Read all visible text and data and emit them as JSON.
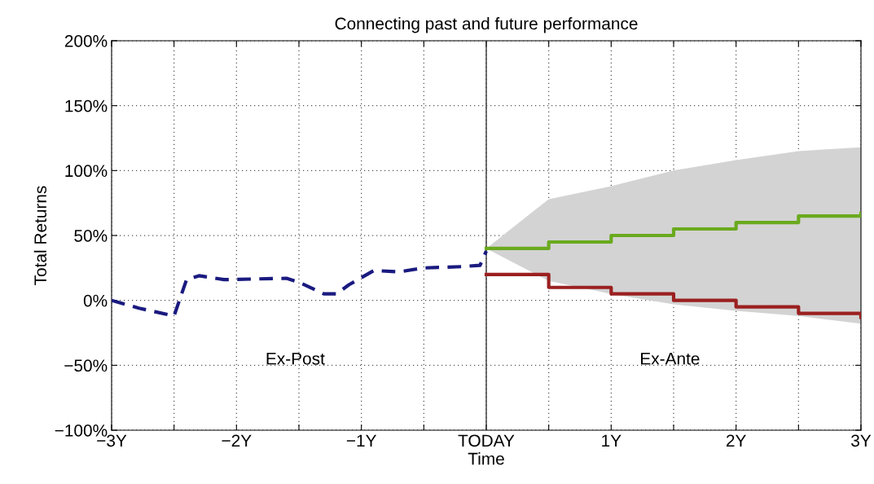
{
  "chart_data": {
    "type": "line",
    "title": "Connecting past and future performance",
    "xlabel": "Time",
    "ylabel": "Total Returns",
    "xlim": [
      -3,
      3
    ],
    "ylim": [
      -100,
      200
    ],
    "xticks": [
      {
        "value": -3,
        "label": "−3Y"
      },
      {
        "value": -2.5,
        "label": null
      },
      {
        "value": -2,
        "label": "−2Y"
      },
      {
        "value": -1.5,
        "label": null
      },
      {
        "value": -1,
        "label": "−1Y"
      },
      {
        "value": -0.5,
        "label": null
      },
      {
        "value": 0,
        "label": "TODAY"
      },
      {
        "value": 0.5,
        "label": null
      },
      {
        "value": 1,
        "label": "1Y"
      },
      {
        "value": 1.5,
        "label": null
      },
      {
        "value": 2,
        "label": "2Y"
      },
      {
        "value": 2.5,
        "label": null
      },
      {
        "value": 3,
        "label": "3Y"
      }
    ],
    "yticks": [
      {
        "value": -100,
        "label": "−100%"
      },
      {
        "value": -50,
        "label": "−50%"
      },
      {
        "value": 0,
        "label": "0%"
      },
      {
        "value": 50,
        "label": "50%"
      },
      {
        "value": 100,
        "label": "100%"
      },
      {
        "value": 150,
        "label": "150%"
      },
      {
        "value": 200,
        "label": "200%"
      }
    ],
    "grid": true,
    "legend": false,
    "marker": "none",
    "series": [
      {
        "type": "area",
        "color": "#d3d3d3",
        "x": [
          0,
          0.5,
          1,
          1.5,
          2,
          2.5,
          3
        ],
        "values": [
          null,
          null,
          null,
          null,
          null,
          null,
          null
        ],
        "lower": [
          40,
          15,
          5,
          -3,
          -8,
          -12,
          -18
        ],
        "upper": [
          40,
          78,
          88,
          100,
          108,
          115,
          118
        ]
      },
      {
        "color": "#1a1a80",
        "line_style": "dashed",
        "x": [
          -3,
          -2.78,
          -2.5,
          -2.4,
          -2.3,
          -2.1,
          -1.6,
          -1.5,
          -1.3,
          -1.2,
          -1.1,
          -0.9,
          -0.7,
          -0.5,
          -0.2,
          -0.05,
          0
        ],
        "values": [
          0,
          -6,
          -12,
          16,
          19,
          16,
          17,
          14,
          5,
          5,
          12,
          23,
          22,
          25,
          26,
          27,
          38
        ]
      },
      {
        "type": "step",
        "color": "#6aaa1e",
        "line_style": "solid",
        "x": [
          0,
          0.5,
          1,
          1.5,
          2,
          2.5,
          3
        ],
        "values": [
          40,
          45,
          50,
          55,
          60,
          65,
          67
        ]
      },
      {
        "type": "step",
        "color": "#9b2020",
        "line_style": "solid",
        "x": [
          0,
          0.5,
          1,
          1.5,
          2,
          2.5,
          3
        ],
        "values": [
          20,
          10,
          5,
          0,
          -5,
          -10,
          -13
        ]
      }
    ],
    "ref_lines": [
      {
        "axis": "x",
        "value": 0,
        "label": null,
        "color": "#333333",
        "line_style": "solid"
      }
    ],
    "annotations": [
      "Ex-Post",
      "Ex-Ante"
    ]
  }
}
